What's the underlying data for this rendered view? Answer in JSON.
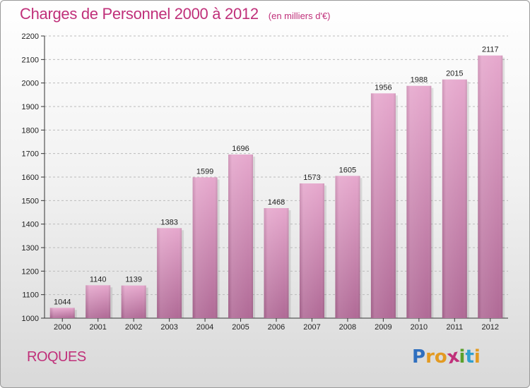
{
  "header": {
    "title": "Charges de Personnel 2000 à 2012",
    "subtitle": "(en milliers d'€)"
  },
  "footer": {
    "place": "ROQUES",
    "logo_letters": [
      "P",
      "r",
      "o",
      "x",
      "i",
      "t",
      "i"
    ],
    "logo_colors": [
      "#2f6fbf",
      "#e39a21",
      "#e39a21",
      "#c0307a",
      "#5aa02c",
      "#2f9fcf",
      "#e39a21"
    ]
  },
  "colors": {
    "title": "#c0307a",
    "bar_top": "#e6a8cd",
    "bar_bottom": "#b06a96",
    "grid": "#bbbbbb"
  },
  "chart_data": {
    "type": "bar",
    "categories": [
      "2000",
      "2001",
      "2002",
      "2003",
      "2004",
      "2005",
      "2006",
      "2007",
      "2008",
      "2009",
      "2010",
      "2011",
      "2012"
    ],
    "values": [
      1044,
      1140,
      1139,
      1383,
      1599,
      1696,
      1468,
      1573,
      1605,
      1956,
      1988,
      2015,
      2117
    ],
    "value_labels": [
      "1044",
      "1140",
      "1139",
      "1383",
      "1599",
      "1696",
      "1468",
      "1573",
      "1605",
      "1956",
      "1988",
      "2015",
      "2117"
    ],
    "title": "Charges de Personnel 2000 à 2012",
    "xlabel": "",
    "ylabel": "",
    "ylim": [
      1000,
      2200
    ],
    "yticks": [
      "1000",
      "1100",
      "1200",
      "1300",
      "1400",
      "1500",
      "1600",
      "1700",
      "1800",
      "1900",
      "2000",
      "2100",
      "2200"
    ],
    "grid": "horizontal dashed"
  }
}
